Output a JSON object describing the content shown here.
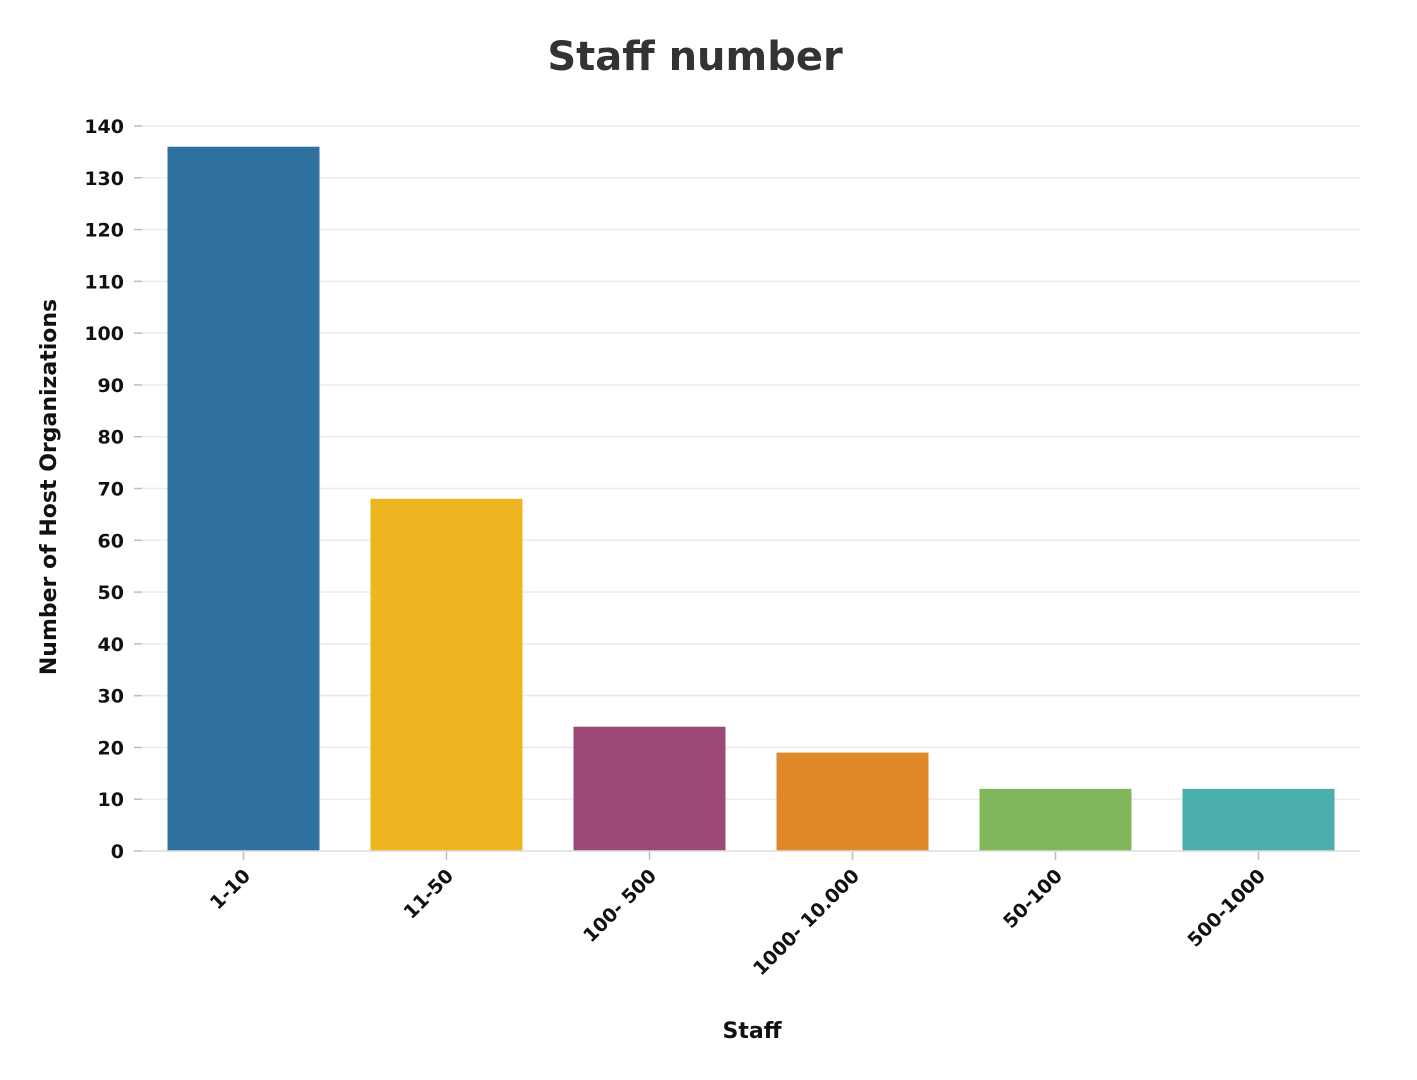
{
  "chart_data": {
    "type": "bar",
    "title": "Staff number",
    "xlabel": "Staff",
    "ylabel": "Number of Host Organizations",
    "categories": [
      "1-10",
      "11-50",
      "100- 500",
      "1000- 10.000",
      "50-100",
      "500-1000"
    ],
    "values": [
      136,
      68,
      24,
      19,
      12,
      12
    ],
    "colors": [
      "#30729f",
      "#edb520",
      "#9d4877",
      "#e0882a",
      "#80b75b",
      "#4aaeac"
    ],
    "ylim": [
      0,
      140
    ],
    "yticks": [
      0,
      10,
      20,
      30,
      40,
      50,
      60,
      70,
      80,
      90,
      100,
      110,
      120,
      130,
      140
    ],
    "grid": true,
    "legend": "none"
  }
}
